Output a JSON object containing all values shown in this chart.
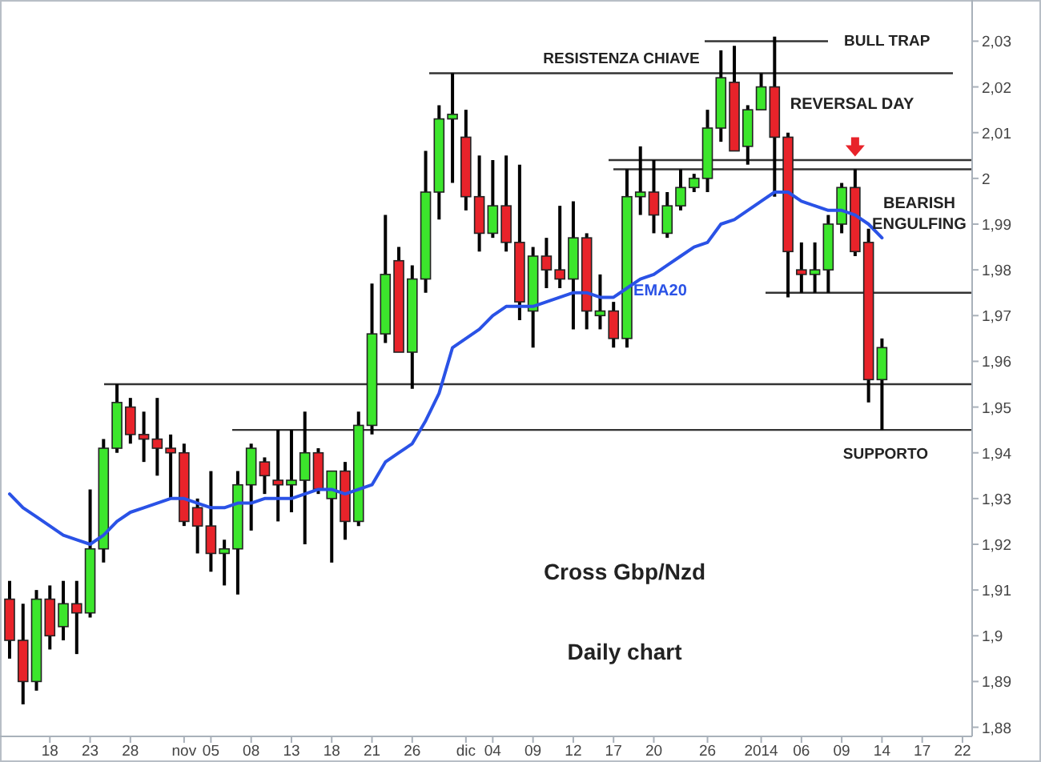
{
  "chart_data": {
    "type": "candlestick",
    "title": "Cross Gbp/Nzd",
    "subtitle": "Daily chart",
    "categories": [
      null,
      null,
      null,
      "18",
      null,
      null,
      "23",
      null,
      null,
      "28",
      null,
      null,
      null,
      "nov",
      null,
      "05",
      null,
      null,
      "08",
      null,
      null,
      "13",
      null,
      null,
      "18",
      null,
      null,
      "21",
      null,
      null,
      "26",
      null,
      null,
      null,
      "dic",
      null,
      "04",
      null,
      null,
      "09",
      null,
      null,
      "12",
      null,
      null,
      "17",
      null,
      null,
      "20",
      null,
      null,
      null,
      "26",
      null,
      null,
      null,
      "2014",
      null,
      null,
      "06",
      null,
      null,
      "09",
      null,
      null,
      "14",
      null,
      null,
      "17",
      null,
      null,
      "22"
    ],
    "series": [
      {
        "ohlc": [
          [
            1.908,
            1.912,
            1.895,
            1.899
          ],
          [
            1.899,
            1.907,
            1.885,
            1.89
          ],
          [
            1.89,
            1.91,
            1.888,
            1.908
          ],
          [
            1.908,
            1.911,
            1.897,
            1.9
          ],
          [
            1.902,
            1.912,
            1.899,
            1.907
          ],
          [
            1.907,
            1.912,
            1.896,
            1.905
          ],
          [
            1.905,
            1.932,
            1.904,
            1.919
          ],
          [
            1.919,
            1.943,
            1.916,
            1.941
          ],
          [
            1.941,
            1.955,
            1.94,
            1.951
          ],
          [
            1.95,
            1.952,
            1.942,
            1.944
          ],
          [
            1.944,
            1.949,
            1.938,
            1.943
          ],
          [
            1.943,
            1.952,
            1.935,
            1.941
          ],
          [
            1.941,
            1.944,
            1.93,
            1.94
          ],
          [
            1.94,
            1.942,
            1.924,
            1.925
          ],
          [
            1.928,
            1.93,
            1.918,
            1.924
          ],
          [
            1.924,
            1.936,
            1.914,
            1.918
          ],
          [
            1.918,
            1.921,
            1.911,
            1.919
          ],
          [
            1.919,
            1.936,
            1.909,
            1.933
          ],
          [
            1.933,
            1.942,
            1.923,
            1.941
          ],
          [
            1.938,
            1.939,
            1.931,
            1.935
          ],
          [
            1.934,
            1.945,
            1.925,
            1.933
          ],
          [
            1.933,
            1.945,
            1.927,
            1.934
          ],
          [
            1.934,
            1.949,
            1.92,
            1.94
          ],
          [
            1.94,
            1.941,
            1.931,
            1.932
          ],
          [
            1.93,
            1.936,
            1.916,
            1.936
          ],
          [
            1.936,
            1.938,
            1.921,
            1.925
          ],
          [
            1.925,
            1.949,
            1.924,
            1.946
          ],
          [
            1.946,
            1.977,
            1.944,
            1.966
          ],
          [
            1.966,
            1.992,
            1.964,
            1.979
          ],
          [
            1.982,
            1.985,
            1.962,
            1.962
          ],
          [
            1.962,
            1.981,
            1.954,
            1.978
          ],
          [
            1.978,
            2.006,
            1.975,
            1.997
          ],
          [
            1.997,
            2.016,
            1.991,
            2.013
          ],
          [
            2.013,
            2.023,
            1.999,
            2.014
          ],
          [
            2.009,
            2.015,
            1.993,
            1.996
          ],
          [
            1.996,
            2.005,
            1.984,
            1.988
          ],
          [
            1.988,
            2.004,
            1.987,
            1.994
          ],
          [
            1.994,
            2.005,
            1.984,
            1.986
          ],
          [
            1.986,
            2.003,
            1.969,
            1.973
          ],
          [
            1.971,
            1.985,
            1.963,
            1.983
          ],
          [
            1.983,
            1.987,
            1.976,
            1.98
          ],
          [
            1.98,
            1.994,
            1.976,
            1.978
          ],
          [
            1.978,
            1.995,
            1.967,
            1.987
          ],
          [
            1.987,
            1.988,
            1.967,
            1.971
          ],
          [
            1.97,
            1.979,
            1.967,
            1.971
          ],
          [
            1.971,
            1.973,
            1.963,
            1.965
          ],
          [
            1.965,
            2.002,
            1.963,
            1.996
          ],
          [
            1.996,
            2.007,
            1.992,
            1.997
          ],
          [
            1.997,
            2.004,
            1.988,
            1.992
          ],
          [
            1.988,
            1.997,
            1.987,
            1.994
          ],
          [
            1.994,
            2.002,
            1.993,
            1.998
          ],
          [
            1.998,
            2.001,
            1.997,
            2.0
          ],
          [
            2.0,
            2.015,
            1.997,
            2.011
          ],
          [
            2.011,
            2.028,
            2.008,
            2.022
          ],
          [
            2.021,
            2.029,
            2.006,
            2.006
          ],
          [
            2.007,
            2.016,
            2.003,
            2.015
          ],
          [
            2.015,
            2.023,
            2.015,
            2.02
          ],
          [
            2.02,
            2.031,
            1.996,
            2.009
          ],
          [
            2.009,
            2.01,
            1.974,
            1.984
          ],
          [
            1.98,
            1.986,
            1.975,
            1.979
          ],
          [
            1.979,
            1.986,
            1.975,
            1.98
          ],
          [
            1.98,
            1.992,
            1.975,
            1.99
          ],
          [
            1.99,
            1.999,
            1.988,
            1.998
          ],
          [
            1.998,
            2.002,
            1.983,
            1.984
          ],
          [
            1.986,
            1.989,
            1.951,
            1.956
          ],
          [
            1.956,
            1.965,
            1.945,
            1.963
          ],
          null,
          null,
          null,
          null,
          null,
          null
        ],
        "colors": [
          "#e8232a",
          "#e8232a",
          "#3ce62c",
          "#e8232a",
          "#3ce62c",
          "#e8232a",
          "#3ce62c",
          "#3ce62c",
          "#3ce62c",
          "#e8232a",
          "#e8232a",
          "#e8232a",
          "#e8232a",
          "#e8232a",
          "#e8232a",
          "#e8232a",
          "#3ce62c",
          "#3ce62c",
          "#3ce62c",
          "#e8232a",
          "#e8232a",
          "#3ce62c",
          "#3ce62c",
          "#e8232a",
          "#3ce62c",
          "#e8232a",
          "#3ce62c",
          "#3ce62c",
          "#3ce62c",
          "#e8232a",
          "#3ce62c",
          "#3ce62c",
          "#3ce62c",
          "#3ce62c",
          "#e8232a",
          "#e8232a",
          "#3ce62c",
          "#e8232a",
          "#e8232a",
          "#3ce62c",
          "#e8232a",
          "#e8232a",
          "#3ce62c",
          "#e8232a",
          "#3ce62c",
          "#e8232a",
          "#3ce62c",
          "#3ce62c",
          "#e8232a",
          "#3ce62c",
          "#3ce62c",
          "#3ce62c",
          "#3ce62c",
          "#3ce62c",
          "#e8232a",
          "#3ce62c",
          "#3ce62c",
          "#e8232a",
          "#e8232a",
          "#e8232a",
          "#3ce62c",
          "#3ce62c",
          "#3ce62c",
          "#e8232a",
          "#e8232a",
          "#3ce62c",
          null,
          null,
          null,
          null,
          null,
          null
        ]
      },
      {
        "type": "line",
        "name": "EMA20",
        "color": "#2a52e6",
        "values": [
          1.931,
          1.928,
          1.926,
          1.924,
          1.922,
          1.921,
          1.92,
          1.922,
          1.925,
          1.927,
          1.928,
          1.929,
          1.93,
          1.93,
          1.929,
          1.928,
          1.928,
          1.929,
          1.929,
          1.93,
          1.93,
          1.93,
          1.931,
          1.932,
          1.932,
          1.931,
          1.932,
          1.933,
          1.938,
          1.94,
          1.942,
          1.947,
          1.953,
          1.963,
          1.965,
          1.967,
          1.97,
          1.972,
          1.972,
          1.972,
          1.973,
          1.974,
          1.975,
          1.975,
          1.974,
          1.974,
          1.976,
          1.978,
          1.979,
          1.981,
          1.983,
          1.985,
          1.986,
          1.99,
          1.991,
          1.993,
          1.995,
          1.997,
          1.997,
          1.995,
          1.994,
          1.993,
          1.993,
          1.992,
          1.99,
          1.987,
          null,
          null,
          null,
          null,
          null,
          null
        ]
      }
    ],
    "ylim": [
      1.878,
      2.039
    ],
    "yticks": [
      {
        "value": 1.88,
        "label": "1,88"
      },
      {
        "value": 1.89,
        "label": "1,89"
      },
      {
        "value": 1.9,
        "label": "1,9"
      },
      {
        "value": 1.91,
        "label": "1,91"
      },
      {
        "value": 1.92,
        "label": "1,92"
      },
      {
        "value": 1.93,
        "label": "1,93"
      },
      {
        "value": 1.94,
        "label": "1,94"
      },
      {
        "value": 1.95,
        "label": "1,95"
      },
      {
        "value": 1.96,
        "label": "1,96"
      },
      {
        "value": 1.97,
        "label": "1,97"
      },
      {
        "value": 1.98,
        "label": "1,98"
      },
      {
        "value": 1.99,
        "label": "1,99"
      },
      {
        "value": 2,
        "label": "2"
      },
      {
        "value": 2.01,
        "label": "2,01"
      },
      {
        "value": 2.02,
        "label": "2,02"
      },
      {
        "value": 2.03,
        "label": "2,03"
      }
    ],
    "ref_lines": [
      {
        "axis": "y",
        "value": 2.023,
        "label": "RESISTENZA CHIAVE",
        "color": "#333333"
      },
      {
        "axis": "y",
        "value": 2.03,
        "label": "BULL TRAP",
        "color": "#333333"
      },
      {
        "axis": "y",
        "value": 2.004,
        "color": "#333333"
      },
      {
        "axis": "y",
        "value": 2.002,
        "color": "#333333"
      },
      {
        "axis": "y",
        "value": 1.975,
        "color": "#333333"
      },
      {
        "axis": "y",
        "value": 1.955,
        "color": "#333333"
      },
      {
        "axis": "y",
        "value": 1.945,
        "label": "SUPPORTO",
        "color": "#333333"
      }
    ],
    "annotations": [
      "REVERSAL DAY",
      "BEARISH ENGULFING"
    ],
    "grid": false
  }
}
